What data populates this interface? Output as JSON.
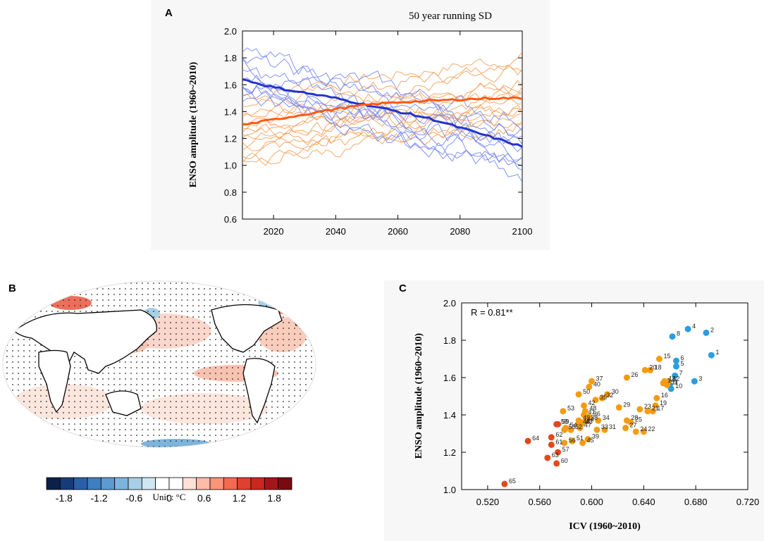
{
  "chart_data": [
    {
      "panel": "A",
      "type": "line",
      "title": "50 year running SD",
      "xlabel": "",
      "ylabel": "ENSO amplitude (1960~2010)",
      "xlim": [
        2010,
        2100
      ],
      "ylim": [
        0.6,
        2.0
      ],
      "xticks": [
        2020,
        2040,
        2060,
        2080,
        2100
      ],
      "yticks": [
        0.6,
        0.8,
        1.0,
        1.2,
        1.4,
        1.6,
        1.8,
        2.0
      ],
      "ytick_labels": [
        "0.6",
        "0.8",
        "1.0",
        "1.2",
        "1.4",
        "1.6",
        "1.8",
        "2.0"
      ],
      "colors": {
        "blue": "#3344cc",
        "blue_light": "#7788ee",
        "orange": "#ff6a1a",
        "orange_light": "#f5a05a"
      },
      "mean_series": [
        {
          "name": "blue-group-mean",
          "color": "#2233cc",
          "x": [
            2010,
            2020,
            2030,
            2040,
            2050,
            2060,
            2070,
            2080,
            2090,
            2100
          ],
          "y": [
            1.64,
            1.58,
            1.54,
            1.5,
            1.45,
            1.4,
            1.35,
            1.28,
            1.21,
            1.14
          ]
        },
        {
          "name": "orange-group-mean",
          "color": "#ff5a10",
          "x": [
            2010,
            2020,
            2030,
            2040,
            2050,
            2060,
            2070,
            2080,
            2090,
            2100
          ],
          "y": [
            1.3,
            1.34,
            1.38,
            1.42,
            1.45,
            1.47,
            1.48,
            1.49,
            1.5,
            1.5
          ]
        }
      ],
      "blue_member_starts": [
        1.82,
        1.78,
        1.74,
        1.7,
        1.67,
        1.64,
        1.61,
        1.58,
        1.55,
        1.52
      ],
      "blue_member_ends": [
        1.35,
        1.28,
        1.22,
        1.18,
        1.14,
        1.1,
        1.06,
        1.02,
        0.97,
        0.93
      ],
      "orange_member_starts": [
        1.52,
        1.45,
        1.4,
        1.36,
        1.32,
        1.29,
        1.26,
        1.23,
        1.2,
        1.17,
        1.14,
        1.1,
        1.06,
        1.02
      ],
      "orange_member_ends": [
        1.81,
        1.74,
        1.68,
        1.63,
        1.59,
        1.56,
        1.53,
        1.5,
        1.47,
        1.44,
        1.41,
        1.38,
        1.34,
        1.3
      ]
    },
    {
      "panel": "C",
      "type": "scatter",
      "title": "",
      "annotation": "R = 0.81**",
      "xlabel": "ICV (1960~2010)",
      "ylabel": "ENSO amplitude (1960~2010)",
      "xlim": [
        0.5,
        0.72
      ],
      "ylim": [
        1.0,
        2.0
      ],
      "xticks": [
        0.52,
        0.56,
        0.6,
        0.64,
        0.68,
        0.72
      ],
      "xtick_labels": [
        "0.520",
        "0.560",
        "0.600",
        "0.640",
        "0.680",
        "0.720"
      ],
      "yticks": [
        1.0,
        1.2,
        1.4,
        1.6,
        1.8,
        2.0
      ],
      "ytick_labels": [
        "1.0",
        "1.2",
        "1.4",
        "1.6",
        "1.8",
        "2.0"
      ],
      "group_colors": {
        "blue": "#2b9de0",
        "orange": "#f39c12",
        "red": "#e04a1a"
      },
      "points": [
        {
          "id": "1",
          "x": 0.692,
          "y": 1.72,
          "g": "blue"
        },
        {
          "id": "2",
          "x": 0.688,
          "y": 1.84,
          "g": "blue"
        },
        {
          "id": "3",
          "x": 0.679,
          "y": 1.58,
          "g": "blue"
        },
        {
          "id": "4",
          "x": 0.674,
          "y": 1.86,
          "g": "blue"
        },
        {
          "id": "5",
          "x": 0.665,
          "y": 1.66,
          "g": "blue"
        },
        {
          "id": "6",
          "x": 0.665,
          "y": 1.69,
          "g": "blue"
        },
        {
          "id": "7",
          "x": 0.664,
          "y": 1.61,
          "g": "blue"
        },
        {
          "id": "8",
          "x": 0.662,
          "y": 1.82,
          "g": "blue"
        },
        {
          "id": "9",
          "x": 0.66,
          "y": 1.56,
          "g": "blue"
        },
        {
          "id": "10",
          "x": 0.661,
          "y": 1.54,
          "g": "blue"
        },
        {
          "id": "11",
          "x": 0.658,
          "y": 1.56,
          "g": "orange"
        },
        {
          "id": "12",
          "x": 0.659,
          "y": 1.58,
          "g": "orange"
        },
        {
          "id": "13",
          "x": 0.656,
          "y": 1.58,
          "g": "orange"
        },
        {
          "id": "14",
          "x": 0.655,
          "y": 1.57,
          "g": "orange"
        },
        {
          "id": "15",
          "x": 0.652,
          "y": 1.7,
          "g": "orange"
        },
        {
          "id": "16",
          "x": 0.65,
          "y": 1.49,
          "g": "orange"
        },
        {
          "id": "17",
          "x": 0.647,
          "y": 1.42,
          "g": "orange"
        },
        {
          "id": "18",
          "x": 0.645,
          "y": 1.64,
          "g": "orange"
        },
        {
          "id": "19",
          "x": 0.649,
          "y": 1.45,
          "g": "orange"
        },
        {
          "id": "20",
          "x": 0.641,
          "y": 1.64,
          "g": "orange"
        },
        {
          "id": "21",
          "x": 0.643,
          "y": 1.42,
          "g": "orange"
        },
        {
          "id": "22",
          "x": 0.64,
          "y": 1.31,
          "g": "orange"
        },
        {
          "id": "23",
          "x": 0.637,
          "y": 1.43,
          "g": "orange"
        },
        {
          "id": "24",
          "x": 0.634,
          "y": 1.31,
          "g": "orange"
        },
        {
          "id": "25",
          "x": 0.63,
          "y": 1.36,
          "g": "orange"
        },
        {
          "id": "26",
          "x": 0.627,
          "y": 1.6,
          "g": "orange"
        },
        {
          "id": "27",
          "x": 0.626,
          "y": 1.33,
          "g": "orange"
        },
        {
          "id": "28",
          "x": 0.627,
          "y": 1.37,
          "g": "orange"
        },
        {
          "id": "29",
          "x": 0.621,
          "y": 1.44,
          "g": "orange"
        },
        {
          "id": "30",
          "x": 0.612,
          "y": 1.51,
          "g": "orange"
        },
        {
          "id": "31",
          "x": 0.61,
          "y": 1.32,
          "g": "orange"
        },
        {
          "id": "32",
          "x": 0.608,
          "y": 1.49,
          "g": "orange"
        },
        {
          "id": "33",
          "x": 0.604,
          "y": 1.32,
          "g": "orange"
        },
        {
          "id": "34",
          "x": 0.605,
          "y": 1.37,
          "g": "orange"
        },
        {
          "id": "35",
          "x": 0.603,
          "y": 1.48,
          "g": "orange"
        },
        {
          "id": "36",
          "x": 0.598,
          "y": 1.39,
          "g": "orange"
        },
        {
          "id": "37",
          "x": 0.6,
          "y": 1.58,
          "g": "orange"
        },
        {
          "id": "38",
          "x": 0.596,
          "y": 1.37,
          "g": "orange"
        },
        {
          "id": "39",
          "x": 0.597,
          "y": 1.27,
          "g": "orange"
        },
        {
          "id": "40",
          "x": 0.598,
          "y": 1.55,
          "g": "orange"
        },
        {
          "id": "41",
          "x": 0.594,
          "y": 1.4,
          "g": "orange"
        },
        {
          "id": "42",
          "x": 0.594,
          "y": 1.45,
          "g": "orange"
        },
        {
          "id": "43",
          "x": 0.592,
          "y": 1.35,
          "g": "orange"
        },
        {
          "id": "44",
          "x": 0.593,
          "y": 1.36,
          "g": "orange"
        },
        {
          "id": "45",
          "x": 0.593,
          "y": 1.25,
          "g": "orange"
        },
        {
          "id": "46",
          "x": 0.59,
          "y": 1.35,
          "g": "orange"
        },
        {
          "id": "47",
          "x": 0.591,
          "y": 1.33,
          "g": "orange"
        },
        {
          "id": "48",
          "x": 0.595,
          "y": 1.42,
          "g": "orange"
        },
        {
          "id": "49",
          "x": 0.59,
          "y": 1.37,
          "g": "orange"
        },
        {
          "id": "50",
          "x": 0.59,
          "y": 1.51,
          "g": "orange"
        },
        {
          "id": "51",
          "x": 0.585,
          "y": 1.26,
          "g": "orange"
        },
        {
          "id": "52",
          "x": 0.584,
          "y": 1.32,
          "g": "orange"
        },
        {
          "id": "53",
          "x": 0.578,
          "y": 1.42,
          "g": "orange"
        },
        {
          "id": "54",
          "x": 0.58,
          "y": 1.33,
          "g": "orange"
        },
        {
          "id": "55",
          "x": 0.579,
          "y": 1.32,
          "g": "orange"
        },
        {
          "id": "56",
          "x": 0.579,
          "y": 1.25,
          "g": "orange"
        },
        {
          "id": "57",
          "x": 0.574,
          "y": 1.2,
          "g": "red"
        },
        {
          "id": "58",
          "x": 0.573,
          "y": 1.35,
          "g": "red"
        },
        {
          "id": "59",
          "x": 0.574,
          "y": 1.35,
          "g": "red"
        },
        {
          "id": "60",
          "x": 0.573,
          "y": 1.14,
          "g": "red"
        },
        {
          "id": "61",
          "x": 0.569,
          "y": 1.24,
          "g": "red"
        },
        {
          "id": "62",
          "x": 0.569,
          "y": 1.28,
          "g": "red"
        },
        {
          "id": "63",
          "x": 0.566,
          "y": 1.17,
          "g": "red"
        },
        {
          "id": "64",
          "x": 0.551,
          "y": 1.26,
          "g": "red"
        },
        {
          "id": "65",
          "x": 0.533,
          "y": 1.03,
          "g": "red"
        }
      ]
    }
  ],
  "panels": {
    "a_label": "A",
    "b_label": "B",
    "c_label": "C"
  },
  "colorbar": {
    "ticks": [
      "-1.8",
      "-1.2",
      "-0.6",
      "0",
      "0.6",
      "1.2",
      "1.8"
    ],
    "unit_label": "Unit : °C",
    "colors": [
      "#0b2149",
      "#163c78",
      "#2a5fa8",
      "#3e7fc1",
      "#5b9bd1",
      "#7db4dc",
      "#a7d0e6",
      "#cde6f1",
      "#ffffff",
      "#ffffff",
      "#fde0d6",
      "#fcbba6",
      "#fb9479",
      "#f26a4f",
      "#e0402f",
      "#c8281f",
      "#a3151a",
      "#7a0912"
    ]
  }
}
